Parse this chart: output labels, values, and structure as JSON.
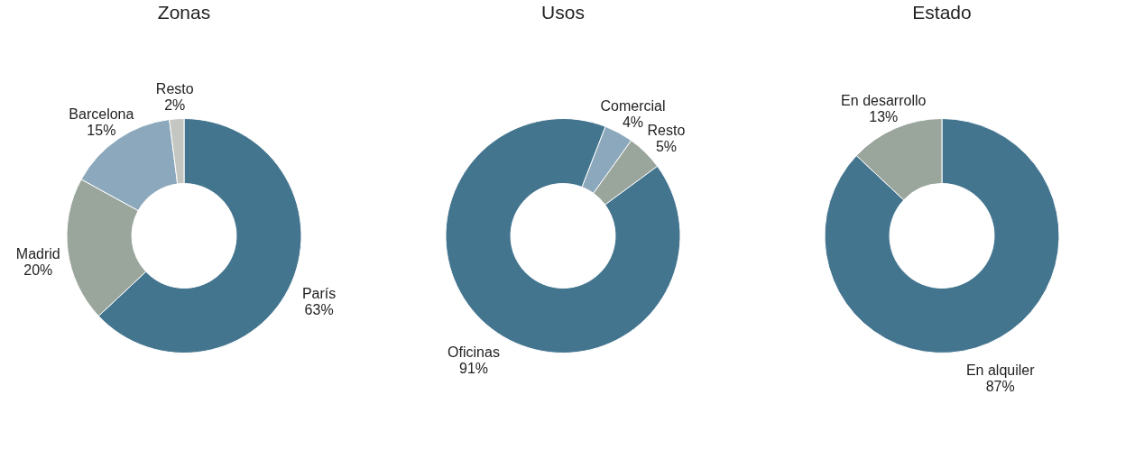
{
  "chart_data": [
    {
      "type": "donut",
      "title": "Zonas",
      "categories": [
        "París",
        "Madrid",
        "Barcelona",
        "Resto"
      ],
      "values": [
        63,
        20,
        15,
        2
      ],
      "value_labels": [
        "63%",
        "20%",
        "15%",
        "2%"
      ],
      "colors": [
        "#44758f",
        "#9aa59c",
        "#8ca8bc",
        "#c3c6c1"
      ],
      "legend": false
    },
    {
      "type": "donut",
      "title": "Usos",
      "categories": [
        "Comercial",
        "Resto",
        "Oficinas"
      ],
      "values": [
        4,
        5,
        91
      ],
      "value_labels": [
        "4%",
        "5%",
        "91%"
      ],
      "colors": [
        "#8ca8bc",
        "#9aa59c",
        "#44758f"
      ],
      "legend": false
    },
    {
      "type": "donut",
      "title": "Estado",
      "categories": [
        "En alquiler",
        "En desarrollo"
      ],
      "values": [
        87,
        13
      ],
      "value_labels": [
        "87%",
        "13%"
      ],
      "colors": [
        "#44758f",
        "#9aa59c"
      ],
      "legend": false
    }
  ]
}
